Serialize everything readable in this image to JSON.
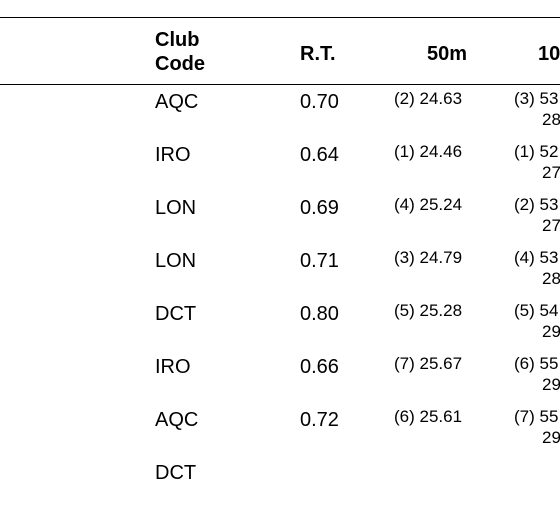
{
  "table": {
    "headers": {
      "club_line1": "Club",
      "club_line2": "Code",
      "reaction_time": "R.T.",
      "split_50m": "50m",
      "split_100m_partial": "10"
    },
    "rows": [
      {
        "club": "AQC",
        "rt": "0.70",
        "split50": "(2) 24.63",
        "split100": "(3) 53",
        "split_sub": "28"
      },
      {
        "club": "IRO",
        "rt": "0.64",
        "split50": "(1) 24.46",
        "split100": "(1) 52",
        "split_sub": "27"
      },
      {
        "club": "LON",
        "rt": "0.69",
        "split50": "(4) 25.24",
        "split100": "(2) 53",
        "split_sub": "27"
      },
      {
        "club": "LON",
        "rt": "0.71",
        "split50": "(3) 24.79",
        "split100": "(4) 53",
        "split_sub": "28"
      },
      {
        "club": "DCT",
        "rt": "0.80",
        "split50": "(5) 25.28",
        "split100": "(5) 54",
        "split_sub": "29"
      },
      {
        "club": "IRO",
        "rt": "0.66",
        "split50": "(7) 25.67",
        "split100": "(6) 55",
        "split_sub": "29"
      },
      {
        "club": "AQC",
        "rt": "0.72",
        "split50": "(6) 25.61",
        "split100": "(7) 55",
        "split_sub": "29"
      },
      {
        "club": "DCT",
        "rt": "",
        "split50": "",
        "split100": "",
        "split_sub": ""
      }
    ]
  }
}
